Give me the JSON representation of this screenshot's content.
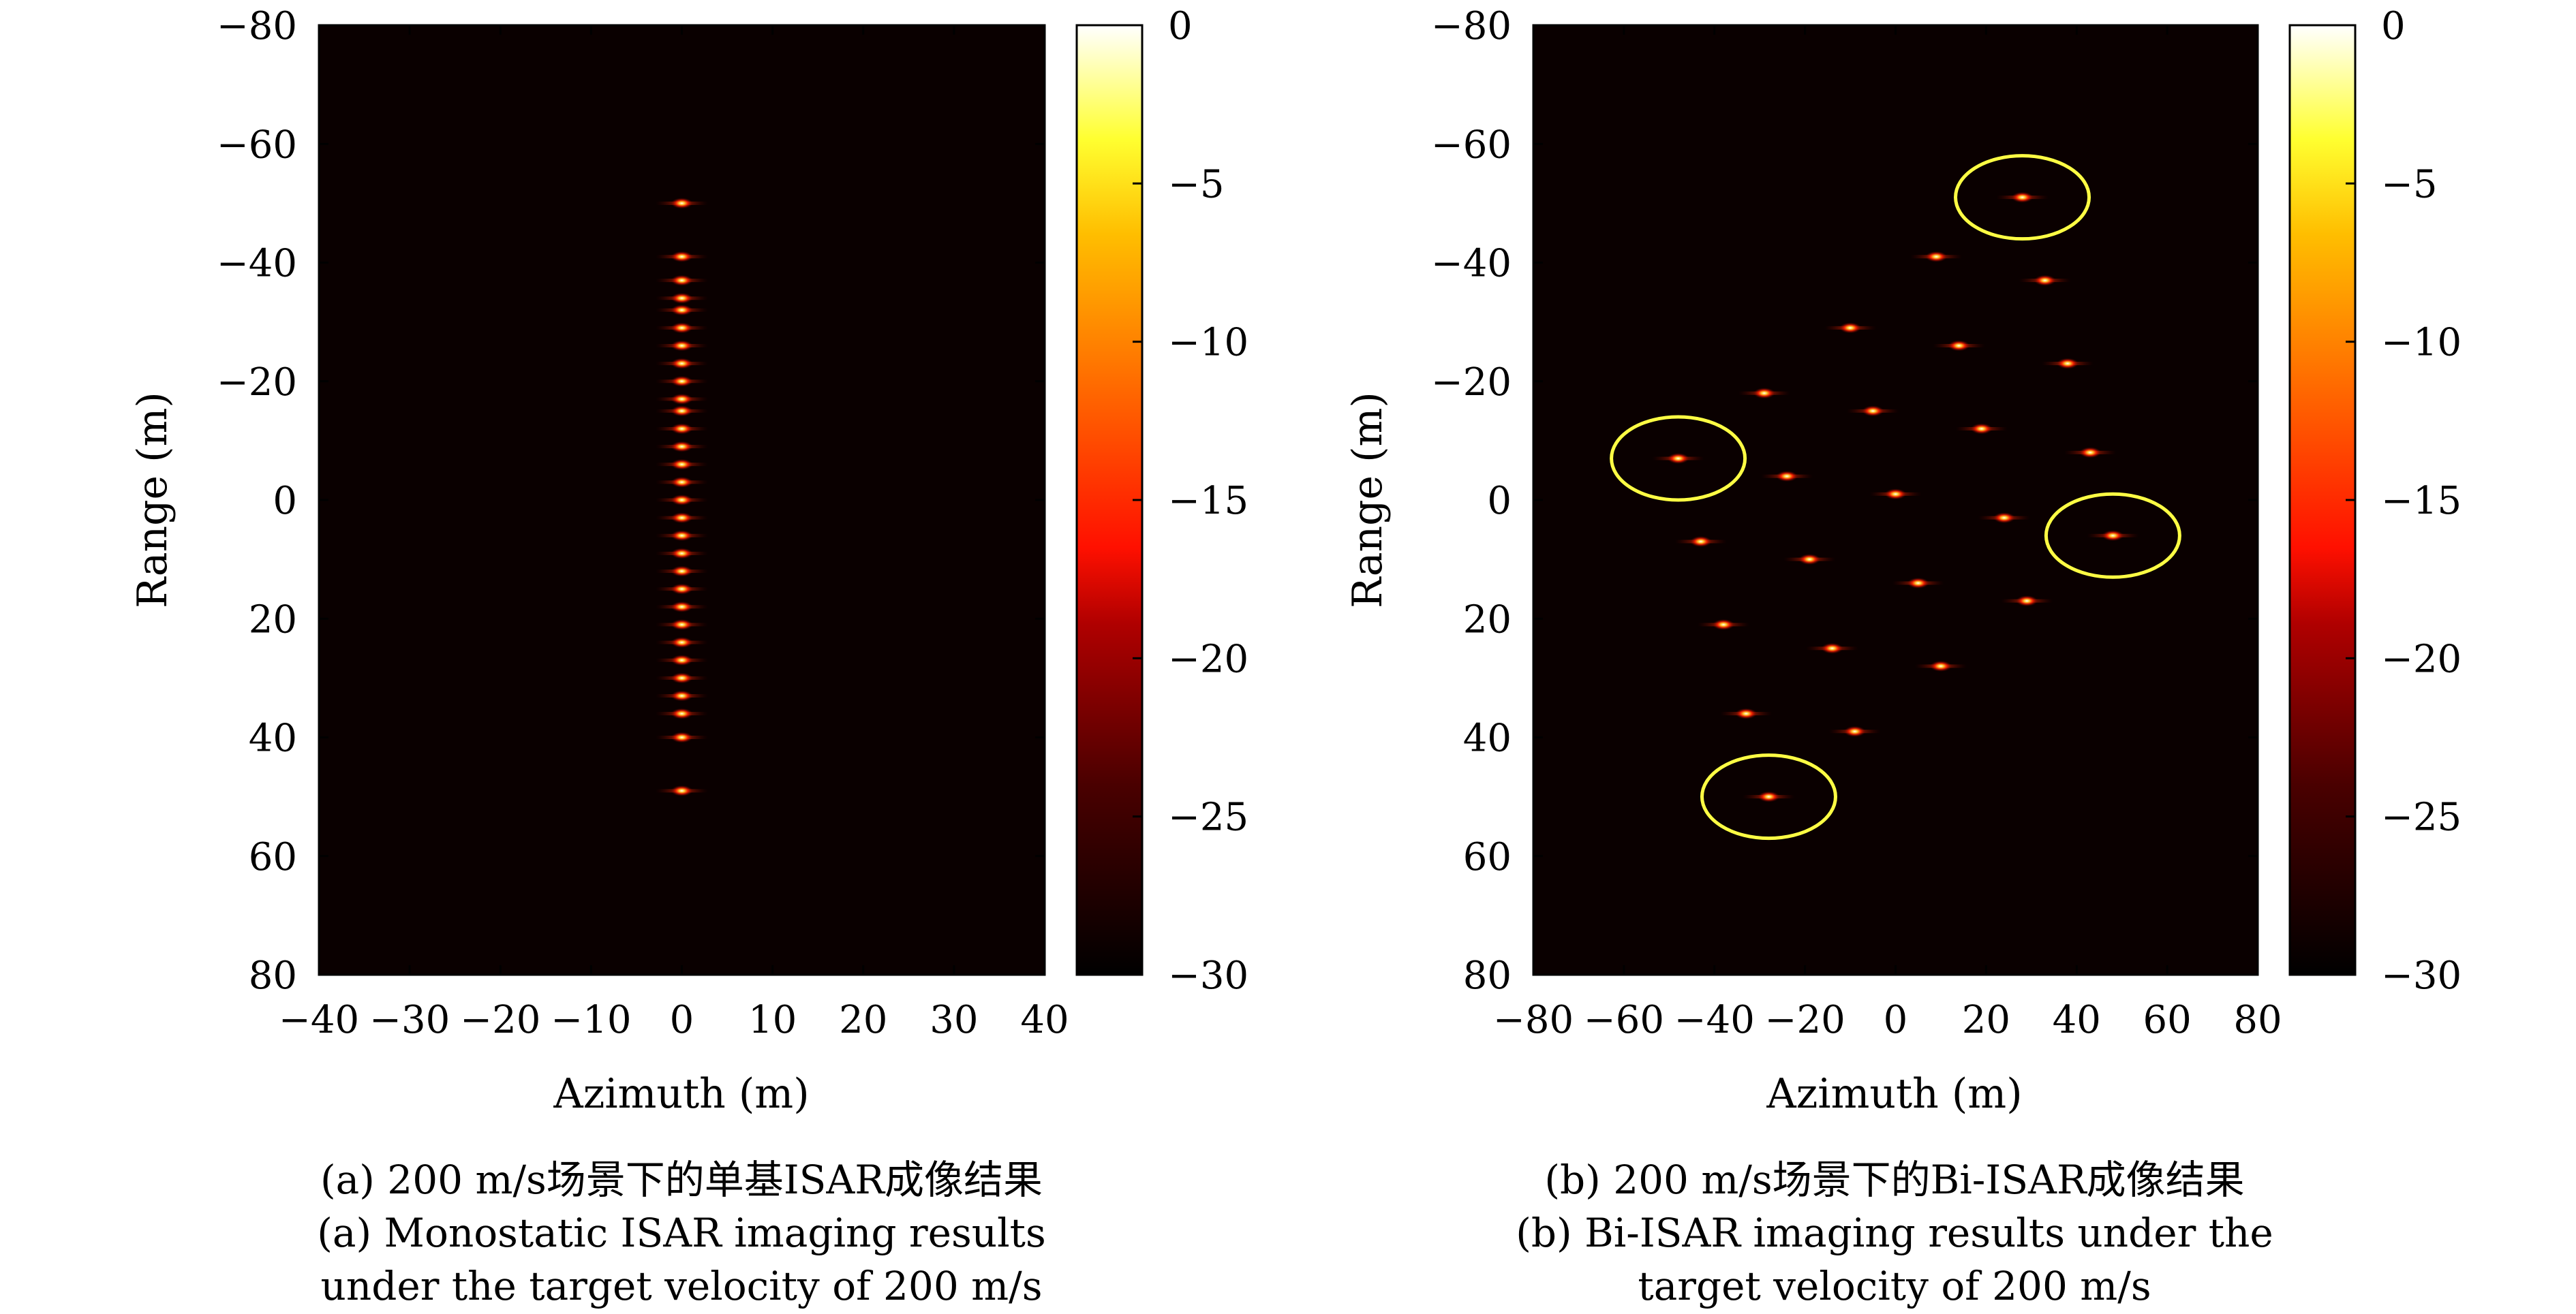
{
  "chart_data": [
    {
      "type": "heatmap",
      "panel": "a",
      "xlabel": "Azimuth (m)",
      "ylabel": "Range (m)",
      "xlim": [
        -40,
        40
      ],
      "ylim": [
        -80,
        80
      ],
      "y_inverted": true,
      "xticks": [
        -40,
        -30,
        -20,
        -10,
        0,
        10,
        20,
        30,
        40
      ],
      "xtick_labels": [
        "−40",
        "−30",
        "−20",
        "−10",
        "0",
        "10",
        "20",
        "30",
        "40"
      ],
      "yticks": [
        -80,
        -60,
        -40,
        -20,
        0,
        20,
        40,
        60,
        80
      ],
      "ytick_labels": [
        "−80",
        "−60",
        "−40",
        "−20",
        "0",
        "20",
        "40",
        "60",
        "80"
      ],
      "colorbar": {
        "range": [
          -30,
          0
        ],
        "ticks": [
          0,
          -5,
          -10,
          -15,
          -20,
          -25,
          -30
        ],
        "tick_labels": [
          "0",
          "−5",
          "−10",
          "−15",
          "−20",
          "−25",
          "−30"
        ]
      },
      "scatterers": [
        {
          "x": 0,
          "y": -50
        },
        {
          "x": 0,
          "y": -41
        },
        {
          "x": 0,
          "y": -37
        },
        {
          "x": 0,
          "y": -34
        },
        {
          "x": 0,
          "y": -32
        },
        {
          "x": 0,
          "y": -29
        },
        {
          "x": 0,
          "y": -26
        },
        {
          "x": 0,
          "y": -23
        },
        {
          "x": 0,
          "y": -20
        },
        {
          "x": 0,
          "y": -17
        },
        {
          "x": 0,
          "y": -15
        },
        {
          "x": 0,
          "y": -12
        },
        {
          "x": 0,
          "y": -9
        },
        {
          "x": 0,
          "y": -6
        },
        {
          "x": 0,
          "y": -3
        },
        {
          "x": 0,
          "y": 0
        },
        {
          "x": 0,
          "y": 3
        },
        {
          "x": 0,
          "y": 6
        },
        {
          "x": 0,
          "y": 9
        },
        {
          "x": 0,
          "y": 12
        },
        {
          "x": 0,
          "y": 15
        },
        {
          "x": 0,
          "y": 18
        },
        {
          "x": 0,
          "y": 21
        },
        {
          "x": 0,
          "y": 24
        },
        {
          "x": 0,
          "y": 27
        },
        {
          "x": 0,
          "y": 30
        },
        {
          "x": 0,
          "y": 33
        },
        {
          "x": 0,
          "y": 36
        },
        {
          "x": 0,
          "y": 40
        },
        {
          "x": 0,
          "y": 49
        }
      ],
      "caption": [
        "(a) 200 m/s场景下的单基ISAR成像结果",
        "(a) Monostatic ISAR imaging results",
        "under the target velocity of 200 m/s"
      ]
    },
    {
      "type": "heatmap",
      "panel": "b",
      "xlabel": "Azimuth (m)",
      "ylabel": "Range (m)",
      "xlim": [
        -80,
        80
      ],
      "ylim": [
        -80,
        80
      ],
      "y_inverted": true,
      "xticks": [
        -80,
        -60,
        -40,
        -20,
        0,
        20,
        40,
        60,
        80
      ],
      "xtick_labels": [
        "−80",
        "−60",
        "−40",
        "−20",
        "0",
        "20",
        "40",
        "60",
        "80"
      ],
      "yticks": [
        -80,
        -60,
        -40,
        -20,
        0,
        20,
        40,
        60,
        80
      ],
      "ytick_labels": [
        "−80",
        "−60",
        "−40",
        "−20",
        "0",
        "20",
        "40",
        "60",
        "80"
      ],
      "colorbar": {
        "range": [
          -30,
          0
        ],
        "ticks": [
          0,
          -5,
          -10,
          -15,
          -20,
          -25,
          -30
        ],
        "tick_labels": [
          "0",
          "−5",
          "−10",
          "−15",
          "−20",
          "−25",
          "−30"
        ]
      },
      "scatterers": [
        {
          "x": 28,
          "y": -51
        },
        {
          "x": 9,
          "y": -41
        },
        {
          "x": 33,
          "y": -37
        },
        {
          "x": -10,
          "y": -29
        },
        {
          "x": 14,
          "y": -26
        },
        {
          "x": 38,
          "y": -23
        },
        {
          "x": -29,
          "y": -18
        },
        {
          "x": -5,
          "y": -15
        },
        {
          "x": 19,
          "y": -12
        },
        {
          "x": 43,
          "y": -8
        },
        {
          "x": -48,
          "y": -7
        },
        {
          "x": -24,
          "y": -4
        },
        {
          "x": 0,
          "y": -1
        },
        {
          "x": 24,
          "y": 3
        },
        {
          "x": 48,
          "y": 6
        },
        {
          "x": -43,
          "y": 7
        },
        {
          "x": -19,
          "y": 10
        },
        {
          "x": 5,
          "y": 14
        },
        {
          "x": 29,
          "y": 17
        },
        {
          "x": -38,
          "y": 21
        },
        {
          "x": -14,
          "y": 25
        },
        {
          "x": 10,
          "y": 28
        },
        {
          "x": -33,
          "y": 36
        },
        {
          "x": -9,
          "y": 39
        },
        {
          "x": -28,
          "y": 50
        }
      ],
      "highlighted": [
        {
          "x": 28,
          "y": -51
        },
        {
          "x": -48,
          "y": -7
        },
        {
          "x": 48,
          "y": 6
        },
        {
          "x": -28,
          "y": 50
        }
      ],
      "highlight_color": "#ffff44",
      "caption": [
        "(b) 200 m/s场景下的Bi-ISAR成像结果",
        "(b) Bi-ISAR imaging results under the",
        "target velocity of 200 m/s"
      ]
    }
  ]
}
